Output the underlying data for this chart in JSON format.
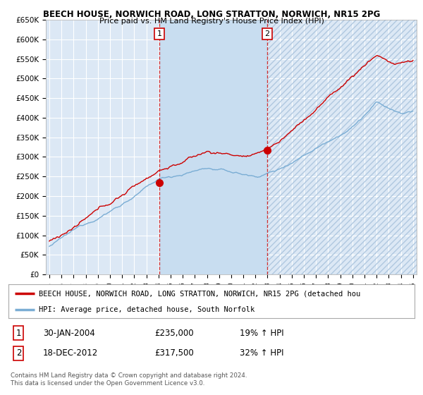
{
  "title1": "BEECH HOUSE, NORWICH ROAD, LONG STRATTON, NORWICH, NR15 2PG",
  "title2": "Price paid vs. HM Land Registry's House Price Index (HPI)",
  "ylabel_ticks": [
    "£0",
    "£50K",
    "£100K",
    "£150K",
    "£200K",
    "£250K",
    "£300K",
    "£350K",
    "£400K",
    "£450K",
    "£500K",
    "£550K",
    "£600K",
    "£650K"
  ],
  "ytick_values": [
    0,
    50000,
    100000,
    150000,
    200000,
    250000,
    300000,
    350000,
    400000,
    450000,
    500000,
    550000,
    600000,
    650000
  ],
  "background_color": "#ffffff",
  "plot_bg_color": "#dce8f5",
  "plot_shade_color": "#c8ddf0",
  "grid_color": "#ffffff",
  "red_line_color": "#cc0000",
  "blue_line_color": "#7aadd4",
  "marker1_x": 2004.08,
  "marker1_y": 235000,
  "marker2_x": 2012.97,
  "marker2_y": 317500,
  "vline1_x": 2004.08,
  "vline2_x": 2012.97,
  "legend_red_label": "BEECH HOUSE, NORWICH ROAD, LONG STRATTON, NORWICH, NR15 2PG (detached hou",
  "legend_blue_label": "HPI: Average price, detached house, South Norfolk",
  "table_row1": [
    "1",
    "30-JAN-2004",
    "£235,000",
    "19% ↑ HPI"
  ],
  "table_row2": [
    "2",
    "18-DEC-2012",
    "£317,500",
    "32% ↑ HPI"
  ],
  "copyright_text": "Contains HM Land Registry data © Crown copyright and database right 2024.\nThis data is licensed under the Open Government Licence v3.0.",
  "ylim": [
    0,
    650000
  ],
  "xlim_start": 1994.7,
  "xlim_end": 2025.3
}
